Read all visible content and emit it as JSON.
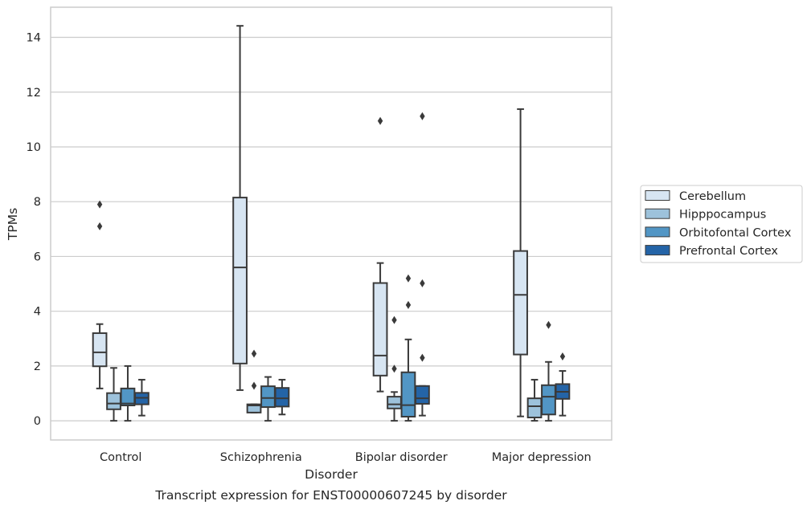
{
  "chart_data": {
    "type": "boxplot",
    "caption": "Transcript expression for ENST00000607245 by disorder",
    "xlabel": "Disorder",
    "ylabel": "TPMs",
    "categories": [
      "Control",
      "Schizophrenia",
      "Bipolar disorder",
      "Major depression"
    ],
    "ylim": [
      -0.7,
      15.1
    ],
    "yticks": [
      0,
      2,
      4,
      6,
      8,
      10,
      12,
      14
    ],
    "grid": "horizontal",
    "legend_position": "right",
    "series": [
      {
        "name": "Cerebellum",
        "color": "#d7e5f2",
        "boxes": [
          {
            "whisker_low": 1.18,
            "q1": 1.99,
            "median": 2.5,
            "q3": 3.2,
            "whisker_high": 3.53,
            "outliers": [
              7.1,
              7.9
            ]
          },
          {
            "whisker_low": 1.12,
            "q1": 2.09,
            "median": 5.6,
            "q3": 8.15,
            "whisker_high": 14.42,
            "outliers": []
          },
          {
            "whisker_low": 1.07,
            "q1": 1.65,
            "median": 2.38,
            "q3": 5.03,
            "whisker_high": 5.76,
            "outliers": [
              10.95
            ]
          },
          {
            "whisker_low": 0.16,
            "q1": 2.42,
            "median": 4.6,
            "q3": 6.2,
            "whisker_high": 11.38,
            "outliers": []
          }
        ]
      },
      {
        "name": "Hipppocampus",
        "color": "#9dc2db",
        "boxes": [
          {
            "whisker_low": 0.0,
            "q1": 0.42,
            "median": 0.63,
            "q3": 1.01,
            "whisker_high": 1.93,
            "outliers": []
          },
          {
            "whisker_low": 0.3,
            "q1": 0.3,
            "median": 0.56,
            "q3": 0.6,
            "whisker_high": 0.6,
            "outliers": [
              1.28,
              2.45
            ]
          },
          {
            "whisker_low": 0.0,
            "q1": 0.45,
            "median": 0.6,
            "q3": 0.88,
            "whisker_high": 1.05,
            "outliers": [
              1.9,
              3.68
            ]
          },
          {
            "whisker_low": 0.0,
            "q1": 0.12,
            "median": 0.53,
            "q3": 0.82,
            "whisker_high": 1.5,
            "outliers": []
          }
        ]
      },
      {
        "name": "Orbitofontal Cortex",
        "color": "#5296c5",
        "boxes": [
          {
            "whisker_low": 0.0,
            "q1": 0.56,
            "median": 0.63,
            "q3": 1.18,
            "whisker_high": 2.0,
            "outliers": []
          },
          {
            "whisker_low": 0.0,
            "q1": 0.5,
            "median": 0.83,
            "q3": 1.26,
            "whisker_high": 1.6,
            "outliers": []
          },
          {
            "whisker_low": 0.0,
            "q1": 0.15,
            "median": 0.57,
            "q3": 1.77,
            "whisker_high": 2.97,
            "outliers": [
              4.23,
              5.2
            ]
          },
          {
            "whisker_low": 0.0,
            "q1": 0.23,
            "median": 0.88,
            "q3": 1.3,
            "whisker_high": 2.15,
            "outliers": [
              3.5
            ]
          }
        ]
      },
      {
        "name": "Prefrontal Cortex",
        "color": "#2464a7",
        "boxes": [
          {
            "whisker_low": 0.19,
            "q1": 0.6,
            "median": 0.84,
            "q3": 1.02,
            "whisker_high": 1.5,
            "outliers": []
          },
          {
            "whisker_low": 0.23,
            "q1": 0.52,
            "median": 0.82,
            "q3": 1.2,
            "whisker_high": 1.5,
            "outliers": []
          },
          {
            "whisker_low": 0.19,
            "q1": 0.62,
            "median": 0.82,
            "q3": 1.27,
            "whisker_high": 1.27,
            "outliers": [
              2.3,
              5.02,
              11.12
            ]
          },
          {
            "whisker_low": 0.19,
            "q1": 0.8,
            "median": 1.06,
            "q3": 1.34,
            "whisker_high": 1.82,
            "outliers": [
              2.35
            ]
          }
        ]
      }
    ]
  }
}
